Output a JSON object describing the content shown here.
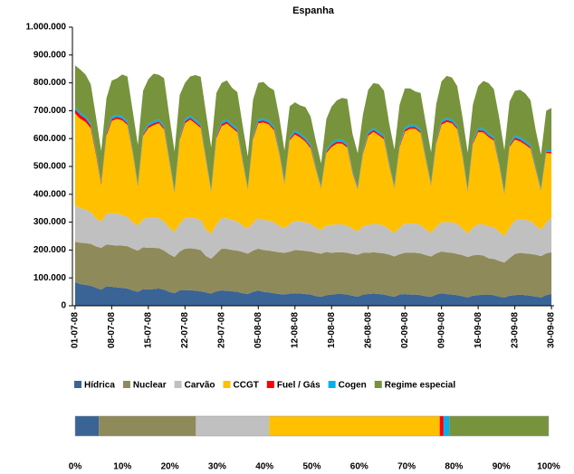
{
  "chart_data": [
    {
      "type": "stacked_area",
      "title": "Espanha",
      "categories": [
        "01-07-08",
        null,
        null,
        null,
        null,
        null,
        null,
        "08-07-08",
        null,
        null,
        null,
        null,
        null,
        null,
        "15-07-08",
        null,
        null,
        null,
        null,
        null,
        null,
        "22-07-08",
        null,
        null,
        null,
        null,
        null,
        null,
        "29-07-08",
        null,
        null,
        null,
        null,
        null,
        null,
        "05-08-08",
        null,
        null,
        null,
        null,
        null,
        null,
        "12-08-08",
        null,
        null,
        null,
        null,
        null,
        null,
        "19-08-08",
        null,
        null,
        null,
        null,
        null,
        null,
        "26-08-08",
        null,
        null,
        null,
        null,
        null,
        null,
        "02-09-08",
        null,
        null,
        null,
        null,
        null,
        null,
        "09-09-08",
        null,
        null,
        null,
        null,
        null,
        null,
        "16-09-08",
        null,
        null,
        null,
        null,
        null,
        null,
        "23-09-08",
        null,
        null,
        null,
        null,
        null,
        null,
        "30-09-08"
      ],
      "series": [
        {
          "name": "Hídrica",
          "color": "#3a6496",
          "values": [
            85000,
            78000,
            75000,
            72000,
            65000,
            58000,
            70000,
            68000,
            66000,
            64000,
            62000,
            55000,
            50000,
            60000,
            58000,
            60000,
            62000,
            58000,
            50000,
            45000,
            55000,
            55000,
            56000,
            54000,
            52000,
            48000,
            44000,
            52000,
            55000,
            54000,
            52000,
            50000,
            45000,
            42000,
            50000,
            55000,
            50000,
            48000,
            45000,
            42000,
            40000,
            44000,
            45000,
            44000,
            42000,
            40000,
            35000,
            32000,
            38000,
            40000,
            42000,
            42000,
            40000,
            36000,
            33000,
            40000,
            42000,
            44000,
            42000,
            40000,
            36000,
            32000,
            40000,
            42000,
            40000,
            40000,
            38000,
            34000,
            32000,
            40000,
            45000,
            42000,
            40000,
            38000,
            34000,
            30000,
            36000,
            38000,
            40000,
            40000,
            38000,
            33000,
            30000,
            36000,
            38000,
            40000,
            38000,
            36000,
            33000,
            30000,
            38000,
            42000
          ]
        },
        {
          "name": "Nuclear",
          "color": "#8f8a5a",
          "values": [
            145000,
            148000,
            150000,
            150000,
            148000,
            150000,
            150000,
            150000,
            150000,
            152000,
            152000,
            150000,
            148000,
            150000,
            150000,
            148000,
            145000,
            140000,
            135000,
            130000,
            140000,
            150000,
            150000,
            150000,
            148000,
            130000,
            125000,
            135000,
            150000,
            150000,
            148000,
            148000,
            148000,
            145000,
            148000,
            150000,
            150000,
            150000,
            150000,
            150000,
            150000,
            150000,
            155000,
            155000,
            155000,
            155000,
            155000,
            155000,
            155000,
            150000,
            150000,
            150000,
            150000,
            150000,
            150000,
            150000,
            148000,
            148000,
            148000,
            148000,
            148000,
            145000,
            145000,
            148000,
            150000,
            150000,
            150000,
            148000,
            145000,
            148000,
            150000,
            150000,
            150000,
            148000,
            148000,
            145000,
            145000,
            145000,
            140000,
            130000,
            130000,
            128000,
            125000,
            135000,
            148000,
            150000,
            150000,
            150000,
            150000,
            148000,
            150000,
            150000
          ]
        },
        {
          "name": "Carvão",
          "color": "#c0c0c0",
          "values": [
            130000,
            125000,
            120000,
            115000,
            100000,
            95000,
            110000,
            115000,
            115000,
            110000,
            105000,
            95000,
            90000,
            100000,
            110000,
            110000,
            108000,
            105000,
            95000,
            90000,
            100000,
            110000,
            112000,
            110000,
            108000,
            95000,
            90000,
            105000,
            110000,
            110000,
            108000,
            105000,
            95000,
            90000,
            100000,
            110000,
            108000,
            108000,
            105000,
            95000,
            88000,
            100000,
            105000,
            105000,
            102000,
            100000,
            90000,
            85000,
            95000,
            100000,
            100000,
            100000,
            98000,
            90000,
            85000,
            95000,
            100000,
            102000,
            102000,
            100000,
            90000,
            85000,
            95000,
            105000,
            105000,
            105000,
            102000,
            92000,
            85000,
            95000,
            105000,
            108000,
            110000,
            108000,
            95000,
            85000,
            100000,
            110000,
            112000,
            115000,
            115000,
            105000,
            95000,
            110000,
            120000,
            120000,
            120000,
            118000,
            105000,
            95000,
            110000,
            125000
          ]
        },
        {
          "name": "CCGT",
          "color": "#ffc000",
          "values": [
            330000,
            320000,
            315000,
            300000,
            230000,
            130000,
            280000,
            330000,
            340000,
            340000,
            330000,
            250000,
            140000,
            300000,
            320000,
            330000,
            340000,
            330000,
            240000,
            140000,
            300000,
            340000,
            350000,
            340000,
            330000,
            250000,
            150000,
            310000,
            330000,
            340000,
            330000,
            320000,
            230000,
            140000,
            300000,
            340000,
            350000,
            345000,
            330000,
            260000,
            160000,
            300000,
            310000,
            300000,
            290000,
            270000,
            210000,
            150000,
            260000,
            280000,
            290000,
            290000,
            280000,
            200000,
            150000,
            260000,
            320000,
            330000,
            320000,
            310000,
            230000,
            160000,
            290000,
            330000,
            340000,
            340000,
            330000,
            250000,
            170000,
            300000,
            350000,
            360000,
            355000,
            340000,
            260000,
            150000,
            300000,
            330000,
            330000,
            320000,
            310000,
            240000,
            150000,
            290000,
            290000,
            280000,
            270000,
            260000,
            200000,
            140000,
            250000,
            230000
          ]
        },
        {
          "name": "Fuel / Gás",
          "color": "#ff0000",
          "values": [
            15000,
            14000,
            12000,
            10000,
            8000,
            6000,
            8000,
            7000,
            7000,
            6000,
            6000,
            4000,
            3000,
            5000,
            7000,
            7000,
            6000,
            6000,
            4000,
            3000,
            5000,
            7000,
            7000,
            6000,
            6000,
            4000,
            3000,
            5000,
            7000,
            7000,
            6000,
            6000,
            4000,
            3000,
            5000,
            7000,
            7000,
            6000,
            6000,
            4000,
            3000,
            5000,
            7000,
            7000,
            6000,
            6000,
            4000,
            3000,
            5000,
            7000,
            7000,
            6000,
            6000,
            4000,
            3000,
            5000,
            7000,
            7000,
            6000,
            6000,
            4000,
            3000,
            5000,
            7000,
            7000,
            6000,
            6000,
            4000,
            3000,
            5000,
            7000,
            7000,
            6000,
            6000,
            4000,
            3000,
            5000,
            7000,
            7000,
            6000,
            6000,
            4000,
            3000,
            5000,
            7000,
            7000,
            6000,
            6000,
            4000,
            3000,
            5000,
            5000
          ]
        },
        {
          "name": "Cogen",
          "color": "#00b0f0",
          "values": [
            8000,
            8000,
            8000,
            8000,
            7000,
            6000,
            7000,
            8000,
            8000,
            8000,
            8000,
            7000,
            6000,
            7000,
            8000,
            8000,
            8000,
            8000,
            7000,
            6000,
            7000,
            8000,
            8000,
            8000,
            8000,
            7000,
            6000,
            7000,
            8000,
            8000,
            8000,
            8000,
            7000,
            6000,
            7000,
            8000,
            8000,
            8000,
            8000,
            7000,
            6000,
            7000,
            8000,
            8000,
            8000,
            8000,
            7000,
            6000,
            7000,
            8000,
            8000,
            8000,
            8000,
            7000,
            6000,
            7000,
            8000,
            8000,
            8000,
            8000,
            7000,
            6000,
            7000,
            8000,
            8000,
            8000,
            8000,
            7000,
            6000,
            7000,
            8000,
            8000,
            8000,
            8000,
            7000,
            6000,
            7000,
            8000,
            8000,
            8000,
            8000,
            7000,
            6000,
            7000,
            8000,
            8000,
            8000,
            8000,
            7000,
            6000,
            7000,
            8000
          ]
        },
        {
          "name": "Regime especial",
          "color": "#77933c",
          "values": [
            150000,
            155000,
            150000,
            140000,
            120000,
            110000,
            120000,
            130000,
            130000,
            150000,
            160000,
            140000,
            140000,
            150000,
            160000,
            170000,
            160000,
            170000,
            150000,
            140000,
            150000,
            130000,
            140000,
            160000,
            170000,
            160000,
            150000,
            150000,
            140000,
            140000,
            130000,
            130000,
            120000,
            110000,
            130000,
            130000,
            130000,
            120000,
            130000,
            120000,
            110000,
            110000,
            100000,
            100000,
            110000,
            100000,
            90000,
            80000,
            110000,
            130000,
            140000,
            150000,
            160000,
            130000,
            120000,
            130000,
            150000,
            160000,
            170000,
            160000,
            140000,
            130000,
            140000,
            140000,
            130000,
            120000,
            130000,
            120000,
            110000,
            130000,
            140000,
            150000,
            150000,
            140000,
            130000,
            130000,
            130000,
            150000,
            170000,
            180000,
            170000,
            160000,
            150000,
            150000,
            160000,
            170000,
            170000,
            160000,
            130000,
            120000,
            140000,
            150000
          ]
        }
      ],
      "ylim": [
        0,
        1000000
      ],
      "yticks": [
        0,
        {
          "value": 100000,
          "label": "100.000"
        },
        {
          "value": 200000,
          "label": "200.000"
        },
        {
          "value": 300000,
          "label": "300.000"
        },
        {
          "value": 400000,
          "label": "400.000"
        },
        {
          "value": 500000,
          "label": "500.000"
        },
        {
          "value": 600000,
          "label": "600.000"
        },
        {
          "value": 700000,
          "label": "700.000"
        },
        {
          "value": 800000,
          "label": "800.000"
        },
        {
          "value": 900000,
          "label": "900.000"
        },
        {
          "value": 1000000,
          "label": "1.000.000"
        }
      ]
    },
    {
      "type": "stacked_bar_100",
      "values": [
        5,
        20.5,
        15.5,
        36,
        0.8,
        1.2,
        21
      ],
      "xlim": [
        0,
        100
      ],
      "xticks": [
        {
          "value": 0,
          "label": "0%"
        },
        {
          "value": 10,
          "label": "10%"
        },
        {
          "value": 20,
          "label": "20%"
        },
        {
          "value": 30,
          "label": "30%"
        },
        {
          "value": 40,
          "label": "40%"
        },
        {
          "value": 50,
          "label": "50%"
        },
        {
          "value": 60,
          "label": "60%"
        },
        {
          "value": 70,
          "label": "70%"
        },
        {
          "value": 80,
          "label": "80%"
        },
        {
          "value": 90,
          "label": "90%"
        },
        {
          "value": 100,
          "label": "100%"
        }
      ]
    }
  ]
}
